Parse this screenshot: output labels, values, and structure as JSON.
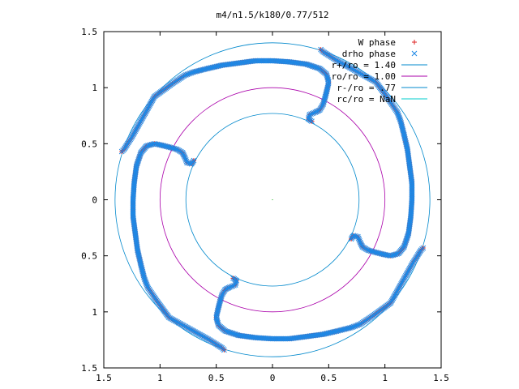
{
  "chart_data": {
    "type": "scatter",
    "title": "m4/n1.5/k180/0.77/512",
    "xlabel": "",
    "ylabel": "",
    "xlim": [
      -1.5,
      1.5
    ],
    "ylim": [
      -1.5,
      1.5
    ],
    "x_ticks": [
      -1.5,
      -1,
      -0.5,
      0,
      0.5,
      1,
      1.5
    ],
    "y_ticks": [
      -1.5,
      -1,
      -0.5,
      0,
      0.5,
      1,
      1.5
    ],
    "x_tick_labels": [
      "1.5",
      "1",
      "0.5",
      "0",
      "0.5",
      "1",
      "1.5"
    ],
    "y_tick_labels": [
      "1.5",
      "1",
      "0.5",
      "0",
      "0.5",
      "1",
      "1.5"
    ],
    "grid": false,
    "legend_position": "top-right",
    "curves": [
      {
        "name": "r+/ro = 1.40",
        "type": "circle",
        "radius": 1.4,
        "color": "#0088cc"
      },
      {
        "name": "ro/ro = 1.00",
        "type": "circle",
        "radius": 1.0,
        "color": "#aa00aa"
      },
      {
        "name": "r-/ro = .77",
        "type": "circle",
        "radius": 0.77,
        "color": "#0088cc"
      },
      {
        "name": "rc/ro = NaN",
        "type": "circle",
        "radius": null,
        "color": "#00cccc"
      }
    ],
    "series": [
      {
        "name": "W phase",
        "marker": "+",
        "color": "#dd2222",
        "arms": [
          [
            [
              0.35,
              0.7
            ],
            [
              0.32,
              0.72
            ],
            [
              0.33,
              0.76
            ],
            [
              0.38,
              0.78
            ],
            [
              0.42,
              0.8
            ],
            [
              0.45,
              0.85
            ],
            [
              0.47,
              0.92
            ],
            [
              0.49,
              1.0
            ],
            [
              0.5,
              1.05
            ],
            [
              0.48,
              1.12
            ],
            [
              0.42,
              1.17
            ],
            [
              0.3,
              1.21
            ],
            [
              0.15,
              1.23
            ],
            [
              0.0,
              1.24
            ],
            [
              -0.15,
              1.24
            ],
            [
              -0.3,
              1.22
            ],
            [
              -0.45,
              1.2
            ],
            [
              -0.58,
              1.17
            ],
            [
              -0.7,
              1.14
            ],
            [
              -0.78,
              1.11
            ],
            [
              -0.9,
              1.03
            ],
            [
              -1.05,
              0.92
            ],
            [
              -1.15,
              0.74
            ],
            [
              -1.25,
              0.56
            ],
            [
              -1.32,
              0.45
            ],
            [
              -1.34,
              0.43
            ]
          ],
          [
            [
              -0.35,
              -0.7
            ],
            [
              -0.32,
              -0.72
            ],
            [
              -0.33,
              -0.76
            ],
            [
              -0.38,
              -0.78
            ],
            [
              -0.42,
              -0.8
            ],
            [
              -0.45,
              -0.85
            ],
            [
              -0.47,
              -0.92
            ],
            [
              -0.49,
              -1.0
            ],
            [
              -0.5,
              -1.05
            ],
            [
              -0.48,
              -1.12
            ],
            [
              -0.42,
              -1.17
            ],
            [
              -0.3,
              -1.21
            ],
            [
              -0.15,
              -1.23
            ],
            [
              0.0,
              -1.24
            ],
            [
              0.15,
              -1.24
            ],
            [
              0.3,
              -1.22
            ],
            [
              0.45,
              -1.2
            ],
            [
              0.58,
              -1.17
            ],
            [
              0.7,
              -1.14
            ],
            [
              0.78,
              -1.11
            ],
            [
              0.9,
              -1.03
            ],
            [
              1.05,
              -0.92
            ],
            [
              1.15,
              -0.74
            ],
            [
              1.25,
              -0.56
            ],
            [
              1.32,
              -0.45
            ],
            [
              1.34,
              -0.43
            ]
          ],
          [
            [
              -0.7,
              0.35
            ],
            [
              -0.72,
              0.32
            ],
            [
              -0.76,
              0.33
            ],
            [
              -0.78,
              0.38
            ],
            [
              -0.8,
              0.42
            ],
            [
              -0.85,
              0.45
            ],
            [
              -0.92,
              0.47
            ],
            [
              -1.0,
              0.49
            ],
            [
              -1.05,
              0.5
            ],
            [
              -1.12,
              0.48
            ],
            [
              -1.17,
              0.42
            ],
            [
              -1.21,
              0.3
            ],
            [
              -1.23,
              0.15
            ],
            [
              -1.24,
              0.0
            ],
            [
              -1.24,
              -0.15
            ],
            [
              -1.22,
              -0.3
            ],
            [
              -1.2,
              -0.45
            ],
            [
              -1.17,
              -0.58
            ],
            [
              -1.14,
              -0.7
            ],
            [
              -1.11,
              -0.78
            ],
            [
              -1.03,
              -0.9
            ],
            [
              -0.92,
              -1.05
            ],
            [
              -0.74,
              -1.15
            ],
            [
              -0.56,
              -1.25
            ],
            [
              -0.45,
              -1.32
            ],
            [
              -0.43,
              -1.34
            ]
          ],
          [
            [
              0.7,
              -0.35
            ],
            [
              0.72,
              -0.32
            ],
            [
              0.76,
              -0.33
            ],
            [
              0.78,
              -0.38
            ],
            [
              0.8,
              -0.42
            ],
            [
              0.85,
              -0.45
            ],
            [
              0.92,
              -0.47
            ],
            [
              1.0,
              -0.49
            ],
            [
              1.05,
              -0.5
            ],
            [
              1.12,
              -0.48
            ],
            [
              1.17,
              -0.42
            ],
            [
              1.21,
              -0.3
            ],
            [
              1.23,
              -0.15
            ],
            [
              1.24,
              0.0
            ],
            [
              1.24,
              0.15
            ],
            [
              1.22,
              0.3
            ],
            [
              1.2,
              0.45
            ],
            [
              1.17,
              0.58
            ],
            [
              1.14,
              0.7
            ],
            [
              1.11,
              0.78
            ],
            [
              1.03,
              0.9
            ],
            [
              0.92,
              1.05
            ],
            [
              0.74,
              1.15
            ],
            [
              0.56,
              1.25
            ],
            [
              0.45,
              1.32
            ],
            [
              0.43,
              1.34
            ]
          ]
        ]
      },
      {
        "name": "drho phase",
        "marker": "x",
        "color": "#1e88e5",
        "arms": [
          [
            [
              0.35,
              0.7
            ],
            [
              0.32,
              0.72
            ],
            [
              0.33,
              0.76
            ],
            [
              0.38,
              0.78
            ],
            [
              0.42,
              0.8
            ],
            [
              0.45,
              0.85
            ],
            [
              0.47,
              0.92
            ],
            [
              0.49,
              1.0
            ],
            [
              0.5,
              1.05
            ],
            [
              0.48,
              1.12
            ],
            [
              0.42,
              1.17
            ],
            [
              0.3,
              1.21
            ],
            [
              0.15,
              1.23
            ],
            [
              0.0,
              1.24
            ],
            [
              -0.15,
              1.24
            ],
            [
              -0.3,
              1.22
            ],
            [
              -0.45,
              1.2
            ],
            [
              -0.58,
              1.17
            ],
            [
              -0.7,
              1.14
            ],
            [
              -0.78,
              1.11
            ],
            [
              -0.9,
              1.03
            ],
            [
              -1.05,
              0.92
            ],
            [
              -1.15,
              0.74
            ],
            [
              -1.25,
              0.56
            ],
            [
              -1.32,
              0.45
            ],
            [
              -1.34,
              0.43
            ]
          ],
          [
            [
              -0.35,
              -0.7
            ],
            [
              -0.32,
              -0.72
            ],
            [
              -0.33,
              -0.76
            ],
            [
              -0.38,
              -0.78
            ],
            [
              -0.42,
              -0.8
            ],
            [
              -0.45,
              -0.85
            ],
            [
              -0.47,
              -0.92
            ],
            [
              -0.49,
              -1.0
            ],
            [
              -0.5,
              -1.05
            ],
            [
              -0.48,
              -1.12
            ],
            [
              -0.42,
              -1.17
            ],
            [
              -0.3,
              -1.21
            ],
            [
              -0.15,
              -1.23
            ],
            [
              0.0,
              -1.24
            ],
            [
              0.15,
              -1.24
            ],
            [
              0.3,
              -1.22
            ],
            [
              0.45,
              -1.2
            ],
            [
              0.58,
              -1.17
            ],
            [
              0.7,
              -1.14
            ],
            [
              0.78,
              -1.11
            ],
            [
              0.9,
              -1.03
            ],
            [
              1.05,
              -0.92
            ],
            [
              1.15,
              -0.74
            ],
            [
              1.25,
              -0.56
            ],
            [
              1.32,
              -0.45
            ],
            [
              1.34,
              -0.43
            ]
          ],
          [
            [
              -0.7,
              0.35
            ],
            [
              -0.72,
              0.32
            ],
            [
              -0.76,
              0.33
            ],
            [
              -0.78,
              0.38
            ],
            [
              -0.8,
              0.42
            ],
            [
              -0.85,
              0.45
            ],
            [
              -0.92,
              0.47
            ],
            [
              -1.0,
              0.49
            ],
            [
              -1.05,
              0.5
            ],
            [
              -1.12,
              0.48
            ],
            [
              -1.17,
              0.42
            ],
            [
              -1.21,
              0.3
            ],
            [
              -1.23,
              0.15
            ],
            [
              -1.24,
              0.0
            ],
            [
              -1.24,
              -0.15
            ],
            [
              -1.22,
              -0.3
            ],
            [
              -1.2,
              -0.45
            ],
            [
              -1.17,
              -0.58
            ],
            [
              -1.14,
              -0.7
            ],
            [
              -1.11,
              -0.78
            ],
            [
              -1.03,
              -0.9
            ],
            [
              -0.92,
              -1.05
            ],
            [
              -0.74,
              -1.15
            ],
            [
              -0.56,
              -1.25
            ],
            [
              -0.45,
              -1.32
            ],
            [
              -0.43,
              -1.34
            ]
          ],
          [
            [
              0.7,
              -0.35
            ],
            [
              0.72,
              -0.32
            ],
            [
              0.76,
              -0.33
            ],
            [
              0.78,
              -0.38
            ],
            [
              0.8,
              -0.42
            ],
            [
              0.85,
              -0.45
            ],
            [
              0.92,
              -0.47
            ],
            [
              1.0,
              -0.49
            ],
            [
              1.05,
              -0.5
            ],
            [
              1.12,
              -0.48
            ],
            [
              1.17,
              -0.42
            ],
            [
              1.21,
              -0.3
            ],
            [
              1.23,
              -0.15
            ],
            [
              1.24,
              0.0
            ],
            [
              1.24,
              0.15
            ],
            [
              1.22,
              0.3
            ],
            [
              1.2,
              0.45
            ],
            [
              1.17,
              0.58
            ],
            [
              1.14,
              0.7
            ],
            [
              1.11,
              0.78
            ],
            [
              1.03,
              0.9
            ],
            [
              0.92,
              1.05
            ],
            [
              0.74,
              1.15
            ],
            [
              0.56,
              1.25
            ],
            [
              0.45,
              1.32
            ],
            [
              0.43,
              1.34
            ]
          ]
        ]
      }
    ]
  }
}
